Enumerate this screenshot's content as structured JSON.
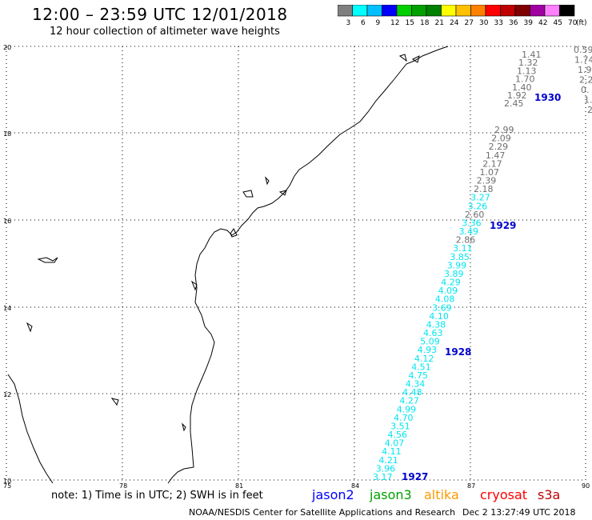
{
  "header": {
    "title": "12:00 – 23:59 UTC 12/01/2018",
    "subtitle": "12 hour collection of altimeter wave heights"
  },
  "colorbar": {
    "unit": "(ft)",
    "values": [
      "3",
      "6",
      "9",
      "12",
      "15",
      "18",
      "21",
      "24",
      "27",
      "30",
      "33",
      "36",
      "39",
      "42",
      "45",
      "70"
    ],
    "colors": [
      "#7f7f7f",
      "#00ffff",
      "#00bfff",
      "#0000ff",
      "#00d000",
      "#00a000",
      "#008000",
      "#ffff00",
      "#ffc000",
      "#ff8000",
      "#ff0000",
      "#c00000",
      "#800000",
      "#a000a0",
      "#ff80ff",
      "#000000"
    ]
  },
  "axes": {
    "lon_ticks": [
      "75",
      "78",
      "81",
      "84",
      "87",
      "90"
    ],
    "lat_ticks": [
      "20",
      "18",
      "16",
      "14",
      "12",
      "10"
    ]
  },
  "passes": [
    {
      "label": "1930"
    },
    {
      "label": "1929"
    },
    {
      "label": "1928"
    },
    {
      "label": "1927"
    }
  ],
  "values_gray_top": [
    "1.41",
    "1.32",
    "1.13",
    "1.70",
    "1.40",
    "1.92",
    "2.45"
  ],
  "values_gray_right": [
    "0.59",
    "1.74",
    "1.9",
    "2.2",
    "0.",
    "1.",
    "2"
  ],
  "values_mid": [
    "2.99",
    "2.09",
    "2.29",
    "1.47",
    "2.17",
    "1.07",
    "2.39",
    "2.18",
    "3.27",
    "3.26",
    "2.60",
    "3.36",
    "3.49",
    "2.86",
    "3.11",
    "3.85",
    "3.99",
    "3.89",
    "4.29",
    "4.09",
    "4.08",
    "3.69",
    "4.10",
    "4.38",
    "4.63",
    "5.09",
    "4.93",
    "4.12",
    "4.51",
    "4.75",
    "4.34",
    "4.48",
    "4.27",
    "4.99",
    "4.70",
    "3.51",
    "4.56",
    "4.07",
    "4.11",
    "4.21",
    "3.96",
    "3.17"
  ],
  "values_mid_colors": [
    "gray",
    "gray",
    "gray",
    "gray",
    "gray",
    "gray",
    "gray",
    "gray",
    "cyan",
    "cyan",
    "gray",
    "cyan",
    "cyan",
    "gray",
    "cyan",
    "cyan",
    "cyan",
    "cyan",
    "cyan",
    "cyan",
    "cyan",
    "cyan",
    "cyan",
    "cyan",
    "cyan",
    "cyan",
    "cyan",
    "cyan",
    "cyan",
    "cyan",
    "cyan",
    "cyan",
    "cyan",
    "cyan",
    "cyan",
    "cyan",
    "cyan",
    "cyan",
    "cyan",
    "cyan",
    "cyan",
    "cyan"
  ],
  "legend": {
    "note": "note: 1) Time is in UTC; 2) SWH is in feet",
    "satellites": [
      {
        "name": "jason2",
        "color": "#0000ff"
      },
      {
        "name": "jason3",
        "color": "#00a000"
      },
      {
        "name": "altika",
        "color": "#ff9900"
      },
      {
        "name": "cryosat",
        "color": "#ff0000"
      },
      {
        "name": "s3a",
        "color": "#c00000"
      }
    ]
  },
  "footer": {
    "credit": "NOAA/NESDIS Center for Satellite Applications and Research",
    "timestamp": "Dec  2 13:27:49 UTC 2018"
  }
}
